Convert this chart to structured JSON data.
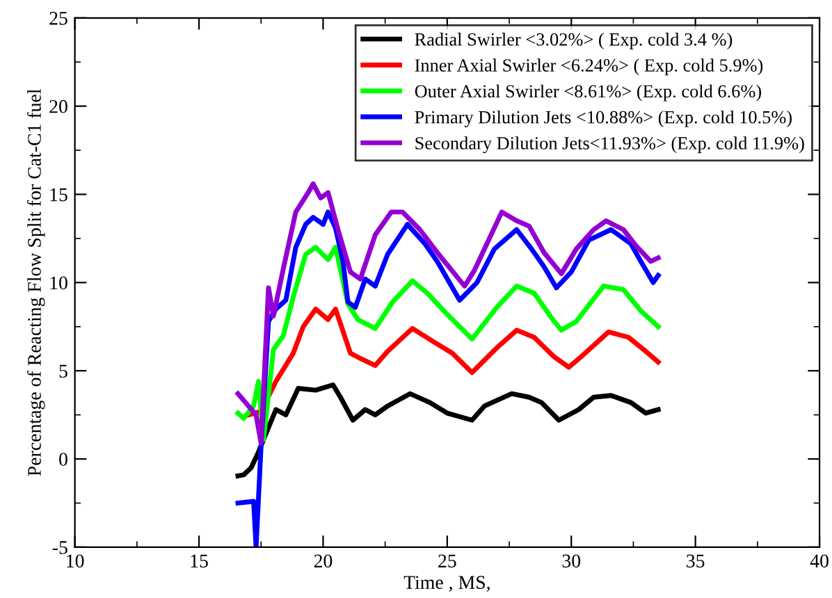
{
  "chart_data": {
    "type": "line",
    "xlabel": "Time , MS,",
    "ylabel": "Percentage of Reacting Flow Split for Cat-C1 fuel",
    "xlim": [
      10,
      40
    ],
    "ylim": [
      -5,
      25
    ],
    "xticks": [
      10,
      15,
      20,
      25,
      30,
      35,
      40
    ],
    "yticks": [
      -5,
      0,
      5,
      10,
      15,
      20,
      25
    ],
    "grid": false,
    "legend": "top right",
    "marker": "none",
    "line_style": "solid",
    "series": [
      {
        "name": "Radial Swirler <3.02%> ( Exp. cold 3.4 %)",
        "color": "#000000",
        "x": [
          16.57,
          16.8,
          17.1,
          17.4,
          17.6,
          18.1,
          18.5,
          19.0,
          19.7,
          20.4,
          20.7,
          21.2,
          21.7,
          22.1,
          22.6,
          23.5,
          24.3,
          25.0,
          26.0,
          26.5,
          27.6,
          28.3,
          28.8,
          29.5,
          30.3,
          30.9,
          31.6,
          32.4,
          33.0,
          33.5
        ],
        "values": [
          -0.96,
          -0.9,
          -0.5,
          0.4,
          1.1,
          2.8,
          2.5,
          4.0,
          3.9,
          4.2,
          3.5,
          2.2,
          2.8,
          2.5,
          3.0,
          3.7,
          3.2,
          2.6,
          2.2,
          3.0,
          3.7,
          3.5,
          3.2,
          2.2,
          2.8,
          3.5,
          3.6,
          3.2,
          2.6,
          2.8
        ]
      },
      {
        "name": "Inner Axial Swirler <6.24%> ( Exp. cold 5.9%)",
        "color": "#ff0000",
        "x": [
          17.0,
          17.5,
          18.1,
          18.8,
          19.2,
          19.7,
          20.2,
          20.5,
          21.1,
          21.5,
          22.1,
          22.6,
          23.6,
          24.5,
          25.2,
          26.0,
          27.0,
          27.8,
          28.5,
          29.3,
          29.9,
          30.4,
          31.5,
          32.3,
          33.0,
          33.5
        ],
        "values": [
          2.5,
          2.7,
          4.4,
          6.0,
          7.5,
          8.5,
          7.9,
          8.5,
          6.0,
          5.7,
          5.3,
          6.1,
          7.4,
          6.6,
          6.0,
          4.9,
          6.3,
          7.3,
          6.9,
          5.8,
          5.2,
          5.8,
          7.2,
          6.9,
          6.1,
          5.5
        ]
      },
      {
        "name": "Outer Axial Swirler <8.61%> (Exp. cold 6.6%)",
        "color": "#00ff00",
        "x": [
          16.57,
          16.8,
          17.2,
          17.4,
          17.6,
          18.0,
          18.4,
          18.8,
          19.3,
          19.7,
          20.2,
          20.5,
          21.0,
          21.4,
          22.1,
          22.8,
          23.6,
          24.2,
          25.0,
          26.0,
          27.0,
          27.8,
          28.5,
          29.2,
          29.6,
          30.2,
          31.3,
          32.1,
          32.8,
          33.5
        ],
        "values": [
          2.6,
          2.3,
          3.0,
          4.4,
          1.1,
          6.2,
          7.0,
          9.2,
          11.6,
          12.0,
          11.3,
          12.0,
          8.8,
          7.9,
          7.4,
          8.9,
          10.1,
          9.4,
          8.2,
          6.8,
          8.6,
          9.8,
          9.4,
          8.0,
          7.3,
          7.8,
          9.8,
          9.6,
          8.4,
          7.5
        ]
      },
      {
        "name": "Primary Dilution Jets <10.88%> (Exp. cold 10.5%)",
        "color": "#0000ff",
        "x": [
          16.57,
          17.2,
          17.3,
          17.5,
          17.8,
          18.1,
          18.5,
          18.9,
          19.3,
          19.6,
          20.0,
          20.2,
          20.5,
          20.8,
          21.0,
          21.3,
          21.7,
          22.1,
          22.6,
          23.4,
          24.1,
          24.6,
          25.5,
          26.2,
          26.9,
          27.8,
          28.4,
          28.9,
          29.4,
          30.0,
          30.7,
          31.6,
          32.4,
          32.8,
          33.3,
          33.5
        ],
        "values": [
          -2.5,
          -2.4,
          -5,
          0.7,
          7.8,
          8.5,
          9.0,
          12.0,
          13.3,
          13.7,
          13.3,
          14.0,
          13.1,
          11.2,
          8.9,
          8.6,
          10.2,
          9.8,
          11.6,
          13.3,
          12.2,
          11.2,
          9.0,
          10.0,
          11.9,
          13.0,
          11.9,
          10.9,
          9.7,
          10.6,
          12.4,
          13.0,
          12.2,
          11.2,
          10.0,
          10.4
        ]
      },
      {
        "name": "Secondary Dilution Jets<11.93%> (Exp. cold 11.9%)",
        "color": "#9400d3",
        "x": [
          16.57,
          17.3,
          17.5,
          17.8,
          18.0,
          18.4,
          18.9,
          19.4,
          19.6,
          19.9,
          20.2,
          20.6,
          21.1,
          21.5,
          22.1,
          22.75,
          23.2,
          23.9,
          24.6,
          25.7,
          26.1,
          27.2,
          27.8,
          28.3,
          28.9,
          29.6,
          30.2,
          30.9,
          31.4,
          32.1,
          32.6,
          33.2,
          33.5
        ],
        "values": [
          3.7,
          2.5,
          0.9,
          9.7,
          8.1,
          10.8,
          14.0,
          15.1,
          15.6,
          14.8,
          15.1,
          13.0,
          10.6,
          10.2,
          12.7,
          14.0,
          14.0,
          13.0,
          11.7,
          9.8,
          10.7,
          14.0,
          13.5,
          13.2,
          11.7,
          10.5,
          11.9,
          13.0,
          13.5,
          13.0,
          12.1,
          11.2,
          11.4
        ]
      }
    ]
  }
}
